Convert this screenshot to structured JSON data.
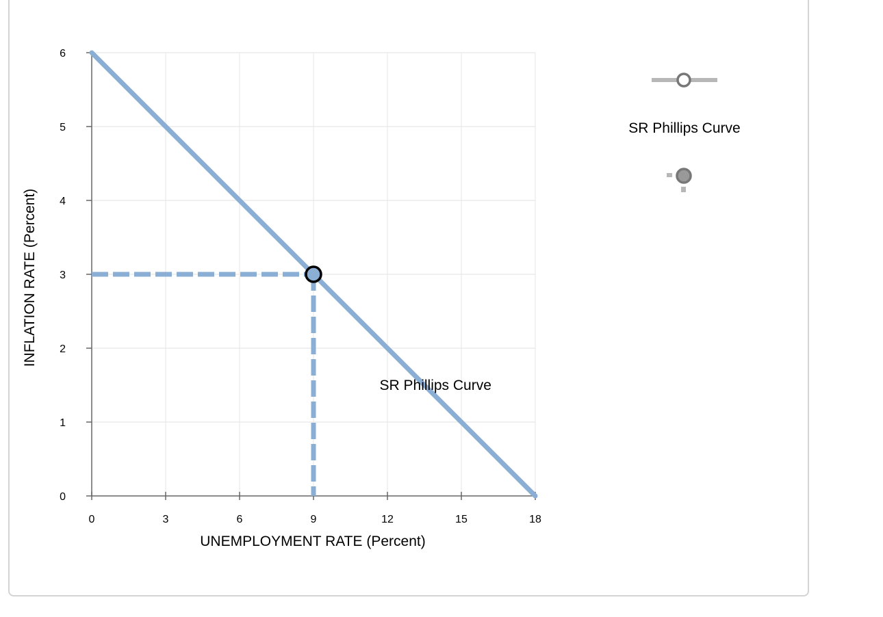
{
  "chart_data": {
    "type": "line",
    "title": "",
    "xlabel": "UNEMPLOYMENT RATE (Percent)",
    "ylabel": "INFLATION RATE (Percent)",
    "xlim": [
      0,
      18
    ],
    "ylim": [
      0,
      6
    ],
    "x_ticks": [
      0,
      3,
      6,
      9,
      12,
      15,
      18
    ],
    "y_ticks": [
      0,
      1,
      2,
      3,
      4,
      5,
      6
    ],
    "grid": true,
    "series": [
      {
        "name": "SR Phillips Curve",
        "x": [
          0,
          18
        ],
        "y": [
          6,
          0
        ],
        "color": "#8aaed4",
        "style": "solid"
      }
    ],
    "point": {
      "x": 9,
      "y": 3,
      "color": "#8aaed4",
      "outline": "#000000"
    },
    "dashed_guides": {
      "x": 9,
      "y": 3,
      "color": "#8aaed4"
    },
    "annotations": [
      {
        "text": "SR Phillips Curve",
        "x": 13.95,
        "y": 1.5
      }
    ]
  },
  "palette": {
    "line_tool_label": "SR Phillips Curve",
    "line_tool_icon": "line-with-point-icon",
    "point_tool_icon": "point-with-guides-icon",
    "tool_color": "#b7b7b7",
    "tool_point_color": "#777777"
  }
}
